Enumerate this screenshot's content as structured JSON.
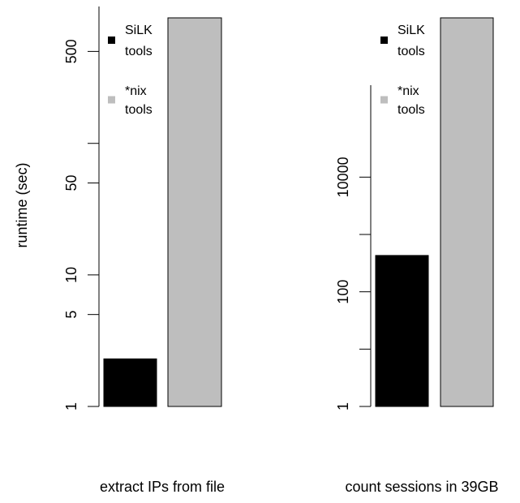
{
  "chart_data": [
    {
      "type": "bar",
      "scale": "log",
      "categories": [
        "SiLK tools",
        "*nix tools"
      ],
      "values": [
        2.3,
        900
      ],
      "colors": [
        "#000000",
        "#bebebe"
      ],
      "yticks": [
        1,
        5,
        10,
        50,
        500
      ],
      "ytick_labels": [
        "1",
        "5",
        "10",
        "50",
        "500"
      ],
      "ylim": [
        1,
        900
      ],
      "ylabel": "runtime (sec)",
      "xlabel": "extract IPs from file",
      "legend": {
        "position": "top-left",
        "entries": [
          {
            "label_lines": [
              "SiLK",
              "tools"
            ],
            "color": "#000000"
          },
          {
            "label_lines": [
              "*nix",
              "tools"
            ],
            "color": "#bebebe"
          }
        ]
      }
    },
    {
      "type": "bar",
      "scale": "log",
      "categories": [
        "SiLK tools",
        "*nix tools"
      ],
      "values": [
        430,
        6000000
      ],
      "colors": [
        "#000000",
        "#bebebe"
      ],
      "yticks": [
        1,
        100,
        10000
      ],
      "ytick_labels": [
        "1",
        "100",
        "10000"
      ],
      "ylim": [
        1,
        6000000
      ],
      "ylabel": "",
      "xlabel": "count sessions in 39GB",
      "legend": {
        "position": "top-left",
        "entries": [
          {
            "label_lines": [
              "SiLK",
              "tools"
            ],
            "color": "#000000"
          },
          {
            "label_lines": [
              "*nix",
              "tools"
            ],
            "color": "#bebebe"
          }
        ]
      }
    }
  ]
}
